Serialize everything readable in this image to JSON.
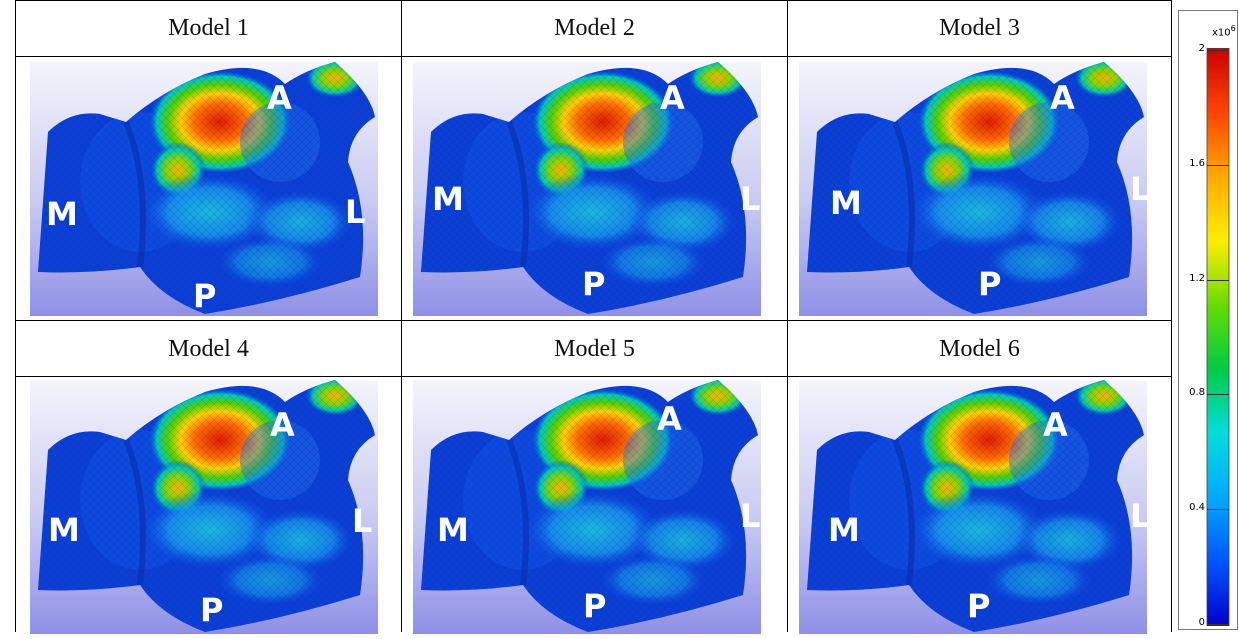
{
  "panels": [
    {
      "title": "Model 1",
      "labels": {
        "anterior": "A",
        "medial": "M",
        "lateral": "L",
        "posterior": "P"
      }
    },
    {
      "title": "Model 2",
      "labels": {
        "anterior": "A",
        "medial": "M",
        "lateral": "L",
        "posterior": "P"
      }
    },
    {
      "title": "Model 3",
      "labels": {
        "anterior": "A",
        "medial": "M",
        "lateral": "L",
        "posterior": "P"
      }
    },
    {
      "title": "Model 4",
      "labels": {
        "anterior": "A",
        "medial": "M",
        "lateral": "L",
        "posterior": "P"
      }
    },
    {
      "title": "Model 5",
      "labels": {
        "anterior": "A",
        "medial": "M",
        "lateral": "L",
        "posterior": "P"
      }
    },
    {
      "title": "Model 6",
      "labels": {
        "anterior": "A",
        "medial": "M",
        "lateral": "L",
        "posterior": "P"
      }
    }
  ],
  "colorbar": {
    "multiplier": "x10",
    "exponent": "6",
    "ticks": [
      "2",
      "1.6",
      "1.2",
      "0.8",
      "0.4",
      "0"
    ],
    "colors": [
      "#cc0000",
      "#ff4400",
      "#ffaa00",
      "#ffee00",
      "#66dd00",
      "#00cc44",
      "#00dddd",
      "#00aaff",
      "#0055ff",
      "#0000cc"
    ]
  }
}
